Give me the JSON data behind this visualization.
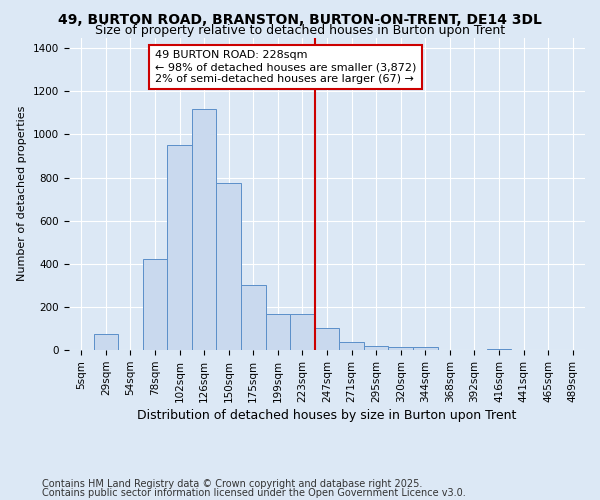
{
  "title1": "49, BURTON ROAD, BRANSTON, BURTON-ON-TRENT, DE14 3DL",
  "title2": "Size of property relative to detached houses in Burton upon Trent",
  "xlabel": "Distribution of detached houses by size in Burton upon Trent",
  "ylabel": "Number of detached properties",
  "categories": [
    "5sqm",
    "29sqm",
    "54sqm",
    "78sqm",
    "102sqm",
    "126sqm",
    "150sqm",
    "175sqm",
    "199sqm",
    "223sqm",
    "247sqm",
    "271sqm",
    "295sqm",
    "320sqm",
    "344sqm",
    "368sqm",
    "392sqm",
    "416sqm",
    "441sqm",
    "465sqm",
    "489sqm"
  ],
  "bar_heights": [
    0,
    75,
    0,
    420,
    950,
    1120,
    775,
    300,
    165,
    165,
    100,
    35,
    20,
    15,
    15,
    0,
    0,
    5,
    0,
    0,
    0
  ],
  "bar_color": "#c9d9ee",
  "bar_edge_color": "#5b8fc9",
  "vline_x_index": 9.5,
  "vline_color": "#cc0000",
  "annotation_text": "49 BURTON ROAD: 228sqm\n← 98% of detached houses are smaller (3,872)\n2% of semi-detached houses are larger (67) →",
  "annotation_box_facecolor": "#ffffff",
  "annotation_box_edgecolor": "#cc0000",
  "ylim": [
    0,
    1450
  ],
  "yticks": [
    0,
    200,
    400,
    600,
    800,
    1000,
    1200,
    1400
  ],
  "plot_bg_color": "#dce8f5",
  "outer_bg_color": "#dce8f5",
  "grid_color": "#ffffff",
  "footer1": "Contains HM Land Registry data © Crown copyright and database right 2025.",
  "footer2": "Contains public sector information licensed under the Open Government Licence v3.0.",
  "title1_fontsize": 10,
  "title2_fontsize": 9,
  "xlabel_fontsize": 9,
  "ylabel_fontsize": 8,
  "tick_fontsize": 7.5,
  "annotation_fontsize": 8,
  "footer_fontsize": 7
}
